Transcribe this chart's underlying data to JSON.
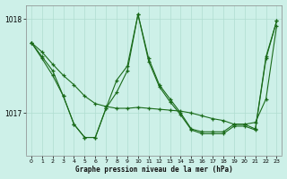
{
  "title": "Graphe pression niveau de la mer (hPa)",
  "background_color": "#cdf0e8",
  "line_color": "#1a6b1a",
  "grid_color": "#b0ddd0",
  "xlim": [
    -0.5,
    23.5
  ],
  "ylim": [
    1016.55,
    1018.15
  ],
  "yticks": [
    1017,
    1018
  ],
  "xticks": [
    0,
    1,
    2,
    3,
    4,
    5,
    6,
    7,
    8,
    9,
    10,
    11,
    12,
    13,
    14,
    15,
    16,
    17,
    18,
    19,
    20,
    21,
    22,
    23
  ],
  "series": [
    {
      "x": [
        0,
        1,
        2,
        3,
        4,
        5,
        6,
        7,
        8,
        9,
        10,
        11,
        12,
        13,
        14,
        15,
        16,
        17,
        18,
        19,
        20,
        21,
        22,
        23
      ],
      "y": [
        1017.75,
        1017.65,
        1017.52,
        1017.4,
        1017.3,
        1017.18,
        1017.1,
        1017.07,
        1017.05,
        1017.05,
        1017.06,
        1017.05,
        1017.04,
        1017.03,
        1017.02,
        1017.0,
        1016.97,
        1016.94,
        1016.92,
        1016.88,
        1016.88,
        1016.9,
        1017.15,
        1017.93
      ]
    },
    {
      "x": [
        0,
        1,
        2,
        3,
        4,
        5,
        6,
        7,
        8,
        9,
        10,
        11,
        12,
        13,
        14,
        15,
        16,
        17,
        18,
        19,
        20,
        21,
        22,
        23
      ],
      "y": [
        1017.75,
        1017.6,
        1017.45,
        1017.18,
        1016.88,
        1016.74,
        1016.74,
        1017.05,
        1017.22,
        1017.45,
        1018.05,
        1017.58,
        1017.3,
        1017.15,
        1017.0,
        1016.83,
        1016.8,
        1016.8,
        1016.8,
        1016.88,
        1016.88,
        1016.83,
        1017.6,
        1017.98
      ]
    },
    {
      "x": [
        0,
        1,
        2,
        3,
        4,
        5,
        6,
        7,
        8,
        9,
        10,
        11,
        12,
        13,
        14,
        15,
        16,
        17,
        18,
        19,
        20,
        21,
        22,
        23
      ],
      "y": [
        1017.75,
        1017.58,
        1017.4,
        1017.18,
        1016.88,
        1016.74,
        1016.74,
        1017.05,
        1017.35,
        1017.5,
        1018.05,
        1017.55,
        1017.28,
        1017.12,
        1016.98,
        1016.82,
        1016.78,
        1016.78,
        1016.78,
        1016.86,
        1016.86,
        1016.82,
        1017.58,
        1017.98
      ]
    }
  ]
}
